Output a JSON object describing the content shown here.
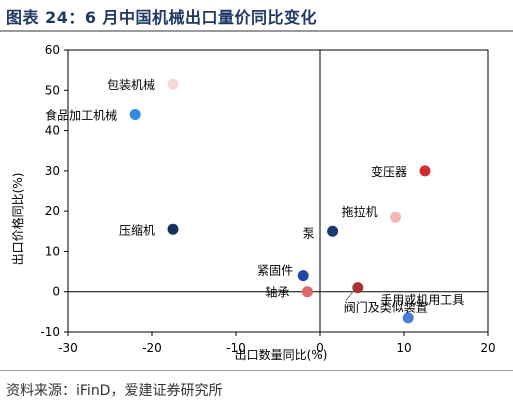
{
  "title": "图表 24：6 月中国机械出口量价同比变化",
  "source": "资料来源：iFinD，爱建证券研究所",
  "chart_data": {
    "type": "scatter",
    "xlabel": "出口数量同比(%)",
    "ylabel": "出口价格同比(%)",
    "xlim": [
      -30,
      20
    ],
    "ylim": [
      -10,
      60
    ],
    "xticks": [
      -30,
      -20,
      -10,
      0,
      10,
      20
    ],
    "yticks": [
      -10,
      0,
      10,
      20,
      30,
      40,
      50,
      60
    ],
    "points": [
      {
        "label": "包装机械",
        "x": -17.5,
        "y": 51.5,
        "color": "#f7d7d7"
      },
      {
        "label": "食品加工机械",
        "x": -22,
        "y": 44,
        "color": "#2f8ae0"
      },
      {
        "label": "变压器",
        "x": 12.5,
        "y": 30,
        "color": "#d42c2c"
      },
      {
        "label": "拖拉机",
        "x": 9,
        "y": 18.5,
        "color": "#f4b6b6"
      },
      {
        "label": "压缩机",
        "x": -17.5,
        "y": 15.5,
        "color": "#15305c"
      },
      {
        "label": "泵",
        "x": 1.5,
        "y": 15,
        "color": "#1d3a6e"
      },
      {
        "label": "紧固件",
        "x": -2,
        "y": 4,
        "color": "#1f4aa8"
      },
      {
        "label": "轴承",
        "x": -1.5,
        "y": 0,
        "color": "#e06666"
      },
      {
        "label": "阀门及类似装置",
        "x": 4.5,
        "y": 1,
        "color": "#a83232"
      },
      {
        "label": "手用或机用工具",
        "x": 10.5,
        "y": -6.5,
        "color": "#4a7fd4"
      }
    ]
  }
}
